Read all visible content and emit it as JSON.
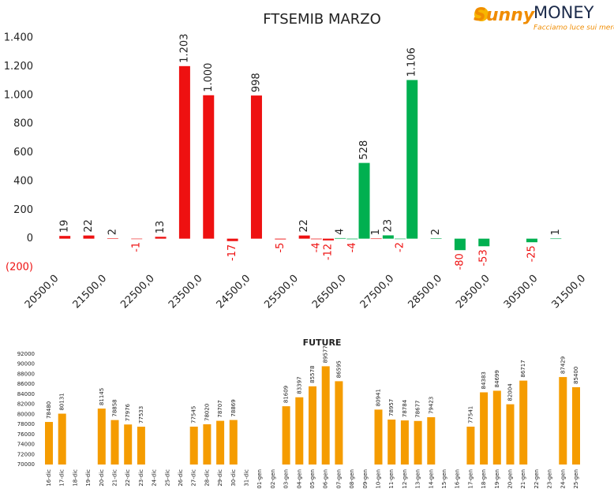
{
  "brand": {
    "name": "Sunny",
    "name2": "MONEY",
    "tagline": "Facciamo luce sui mercati"
  },
  "chart_data": [
    {
      "type": "bar",
      "title": "FTSEMIB MARZO",
      "x": [
        20500,
        21000,
        21500,
        22000,
        22500,
        23000,
        23500,
        24000,
        24500,
        25000,
        25500,
        25750,
        26000,
        26250,
        26500,
        26750,
        27000,
        27250,
        27500,
        27750,
        28250,
        28750,
        29250,
        30250,
        30750
      ],
      "values": [
        19,
        22,
        2,
        -1,
        13,
        1203,
        1000,
        -17,
        998,
        -5,
        22,
        -4,
        -12,
        4,
        -4,
        528,
        1,
        23,
        -2,
        1106,
        2,
        -80,
        -53,
        -25,
        1
      ],
      "value_labels": [
        "19",
        "22",
        "2",
        "-1",
        "13",
        "1.203",
        "1.000",
        "-17",
        "998",
        "-5",
        "22",
        "-4",
        "-12",
        "4",
        "-4",
        "528",
        "1",
        "23",
        "-2",
        "1.106",
        "2",
        "-80",
        "-53",
        "-25",
        "1"
      ],
      "colors": [
        "#ee1111",
        "#ee1111",
        "#ee1111",
        "#ee1111",
        "#ee1111",
        "#ee1111",
        "#ee1111",
        "#ee1111",
        "#ee1111",
        "#ee1111",
        "#ee1111",
        "#ee1111",
        "#ee1111",
        "#00b050",
        "#00b050",
        "#00b050",
        "#ee1111",
        "#00b050",
        "#00b050",
        "#00b050",
        "#00b050",
        "#00b050",
        "#00b050",
        "#00b050",
        "#00b050"
      ],
      "xlim": [
        20250,
        31750
      ],
      "xticks": [
        {
          "value": 20500,
          "label": "20500,0"
        },
        {
          "value": 21500,
          "label": "21500,0"
        },
        {
          "value": 22500,
          "label": "22500,0"
        },
        {
          "value": 23500,
          "label": "23500,0"
        },
        {
          "value": 24500,
          "label": "24500,0"
        },
        {
          "value": 25500,
          "label": "25500,0"
        },
        {
          "value": 26500,
          "label": "26500,0"
        },
        {
          "value": 27500,
          "label": "27500,0"
        },
        {
          "value": 28500,
          "label": "28500,0"
        },
        {
          "value": 29500,
          "label": "29500,0"
        },
        {
          "value": 30500,
          "label": "30500,0"
        },
        {
          "value": 31500,
          "label": "31500,0"
        }
      ],
      "ylim": [
        -200,
        1400
      ],
      "yticks": [
        {
          "value": -200,
          "label": "(200)"
        },
        0,
        200,
        400,
        600,
        800,
        {
          "value": 1000,
          "label": "1.000"
        },
        {
          "value": 1200,
          "label": "1.200"
        },
        {
          "value": 1400,
          "label": "1.400"
        }
      ]
    },
    {
      "type": "bar",
      "title": "FUTURE",
      "categories": [
        "16-dic",
        "17-dic",
        "18-dic",
        "19-dic",
        "20-dic",
        "21-dic",
        "22-dic",
        "23-dic",
        "24-dic",
        "25-dic",
        "26-dic",
        "27-dic",
        "28-dic",
        "29-dic",
        "30-dic",
        "31-dic",
        "01-gen",
        "02-gen",
        "03-gen",
        "04-gen",
        "05-gen",
        "06-gen",
        "07-gen",
        "08-gen",
        "09-gen",
        "10-gen",
        "11-gen",
        "12-gen",
        "13-gen",
        "14-gen",
        "15-gen",
        "16-gen",
        "17-gen",
        "18-gen",
        "19-gen",
        "20-gen",
        "21-gen",
        "22-gen",
        "23-gen",
        "24-gen",
        "25-gen"
      ],
      "values": [
        78480,
        80131,
        null,
        null,
        81145,
        78858,
        77976,
        77533,
        null,
        null,
        null,
        77545,
        78020,
        78707,
        78869,
        null,
        null,
        null,
        81609,
        83397,
        85578,
        89577,
        86595,
        null,
        null,
        80941,
        78957,
        78784,
        78677,
        79423,
        null,
        null,
        77541,
        84383,
        84699,
        82004,
        86717,
        null,
        null,
        87429,
        85400
      ],
      "color": "#f59c00",
      "ylim": [
        70000,
        92000
      ],
      "yticks": [
        70000,
        72000,
        74000,
        76000,
        78000,
        80000,
        82000,
        84000,
        86000,
        88000,
        90000,
        92000
      ]
    }
  ]
}
